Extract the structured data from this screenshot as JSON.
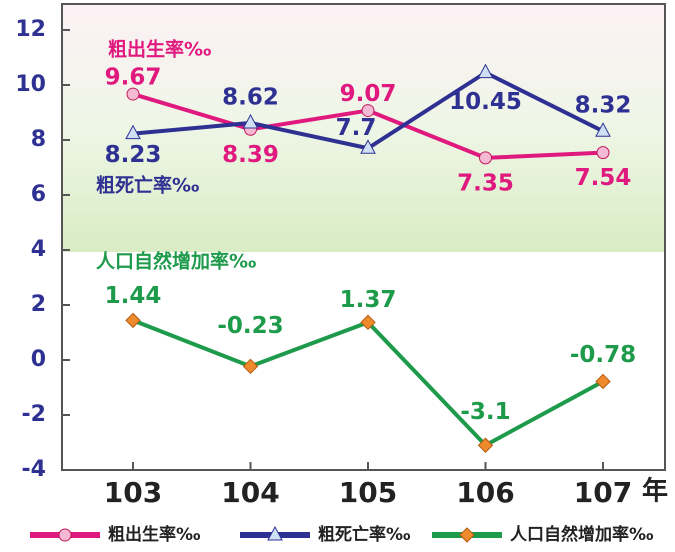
{
  "chart_data": {
    "type": "line",
    "categories": [
      "103",
      "104",
      "105",
      "106",
      "107"
    ],
    "x_label": "年",
    "series": [
      {
        "name": "粗出生率‰",
        "color": "#e0197f",
        "marker": "circle",
        "values": [
          9.67,
          8.39,
          9.07,
          7.35,
          7.54
        ]
      },
      {
        "name": "粗死亡率‰",
        "color": "#2e3192",
        "marker": "triangle",
        "values": [
          8.23,
          8.62,
          7.7,
          10.45,
          8.32
        ]
      },
      {
        "name": "人口自然增加率‰",
        "color": "#1e9a4b",
        "marker": "diamond",
        "values": [
          1.44,
          -0.23,
          1.37,
          -3.1,
          -0.78
        ]
      }
    ],
    "ylim": [
      -4,
      12
    ],
    "yticks": [
      -4,
      -2,
      0,
      2,
      4,
      6,
      8,
      10,
      12
    ]
  }
}
